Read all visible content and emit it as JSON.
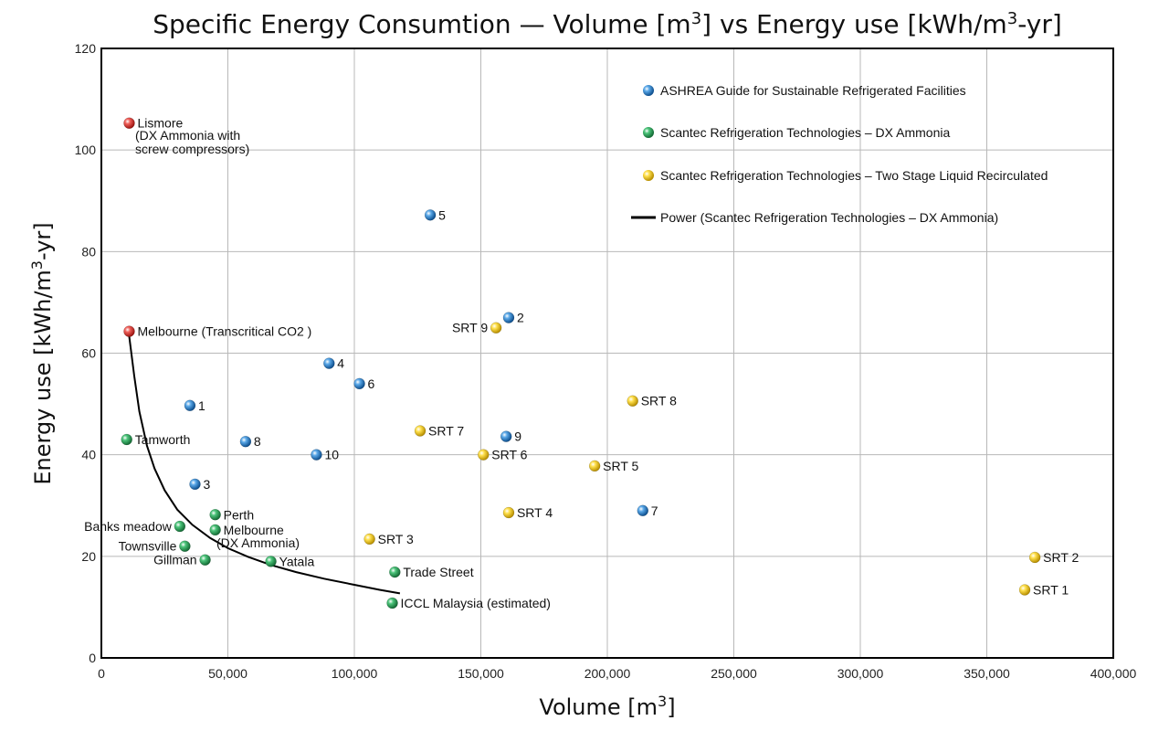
{
  "chart_data": {
    "type": "scatter",
    "title_main": "Specific Energy Consumtion — Volume [m",
    "title_sup1": "3",
    "title_mid": "] vs Energy use [kWh/m",
    "title_sup2": "3",
    "title_end": "-yr]",
    "xlabel_main": "Volume [m",
    "xlabel_sup": "3",
    "xlabel_end": "]",
    "ylabel_main": "Energy use [kWh/m",
    "ylabel_sup": "3",
    "ylabel_end": "-yr]",
    "xlim": [
      0,
      400000
    ],
    "ylim": [
      0,
      120
    ],
    "x_ticks": [
      0,
      50000,
      100000,
      150000,
      200000,
      250000,
      300000,
      350000,
      400000
    ],
    "x_tick_labels": [
      "0",
      "50,000",
      "100,000",
      "150,000",
      "200,000",
      "250,000",
      "300,000",
      "350,000",
      "400,000"
    ],
    "y_ticks": [
      0,
      20,
      40,
      60,
      80,
      100,
      120
    ],
    "y_tick_labels": [
      "0",
      "20",
      "40",
      "60",
      "80",
      "100",
      "120"
    ],
    "grid": true,
    "legend_position": "top-right",
    "colors": {
      "ashrae": "#1f77c8",
      "dx": "#2ca05a",
      "two_stage": "#f2c500",
      "special": "#e0302a",
      "curve": "#000000"
    },
    "series": [
      {
        "key": "ashrae",
        "name": "ASHREA Guide for Sustainable Refrigerated Facilities",
        "points": [
          {
            "x": 35000,
            "y": 49.7,
            "label": "1"
          },
          {
            "x": 161000,
            "y": 67,
            "label": "2"
          },
          {
            "x": 37000,
            "y": 34.2,
            "label": "3"
          },
          {
            "x": 90000,
            "y": 58,
            "label": "4"
          },
          {
            "x": 130000,
            "y": 87.2,
            "label": "5"
          },
          {
            "x": 102000,
            "y": 54,
            "label": "6"
          },
          {
            "x": 214000,
            "y": 29,
            "label": "7"
          },
          {
            "x": 57000,
            "y": 42.6,
            "label": "8"
          },
          {
            "x": 160000,
            "y": 43.6,
            "label": "9"
          },
          {
            "x": 85000,
            "y": 40,
            "label": "10"
          }
        ]
      },
      {
        "key": "dx",
        "name": "Scantec Refrigeration Technologies – DX Ammonia",
        "points": [
          {
            "x": 10000,
            "y": 43,
            "label": "Tamworth"
          },
          {
            "x": 45000,
            "y": 28.2,
            "label": "Perth"
          },
          {
            "x": 31000,
            "y": 25.9,
            "label": "Banks meadow"
          },
          {
            "x": 45000,
            "y": 25.2,
            "label": "Melbourne"
          },
          {
            "x": 33000,
            "y": 22,
            "label": "Townsville"
          },
          {
            "x": 41000,
            "y": 19.3,
            "label": "Gillman"
          },
          {
            "x": 67000,
            "y": 19,
            "label": "Yatala"
          },
          {
            "x": 116000,
            "y": 16.9,
            "label": "Trade Street"
          },
          {
            "x": 115000,
            "y": 10.8,
            "label": "ICCL Malaysia (estimated)"
          }
        ]
      },
      {
        "key": "two_stage",
        "name": "Scantec Refrigeration Technologies – Two Stage Liquid Recirculated",
        "points": [
          {
            "x": 365000,
            "y": 13.4,
            "label": "SRT 1"
          },
          {
            "x": 369000,
            "y": 19.8,
            "label": "SRT 2"
          },
          {
            "x": 106000,
            "y": 23.4,
            "label": "SRT 3"
          },
          {
            "x": 161000,
            "y": 28.6,
            "label": "SRT 4"
          },
          {
            "x": 195000,
            "y": 37.8,
            "label": "SRT 5"
          },
          {
            "x": 151000,
            "y": 40,
            "label": "SRT 6"
          },
          {
            "x": 126000,
            "y": 44.7,
            "label": "SRT 7"
          },
          {
            "x": 210000,
            "y": 50.6,
            "label": "SRT 8"
          },
          {
            "x": 156000,
            "y": 65,
            "label": "SRT 9"
          }
        ]
      },
      {
        "key": "special",
        "points": [
          {
            "x": 11000,
            "y": 105.3,
            "label": "Lismore"
          },
          {
            "x": 11000,
            "y": 64.3,
            "label": "Melbourne (Transcritical CO2 )"
          }
        ]
      }
    ],
    "extra_labels": {
      "melbourne_dx_sub": "(DX Ammonia)",
      "lismore_sub1": "(DX Ammonia with",
      "lismore_sub2": "screw compressors)"
    },
    "trend_curve": {
      "name": "Power (Scantec Refrigeration Technologies – DX Ammonia)",
      "x": [
        11000,
        13000,
        15000,
        18000,
        21000,
        25000,
        30000,
        36000,
        43000,
        50000,
        58000,
        67000,
        77000,
        88000,
        100000,
        110000,
        118000
      ],
      "y": [
        63.3,
        55.5,
        48.5,
        41.8,
        37.3,
        33.0,
        29.2,
        26.2,
        23.6,
        21.6,
        19.9,
        18.3,
        16.9,
        15.6,
        14.4,
        13.4,
        12.7
      ]
    }
  }
}
